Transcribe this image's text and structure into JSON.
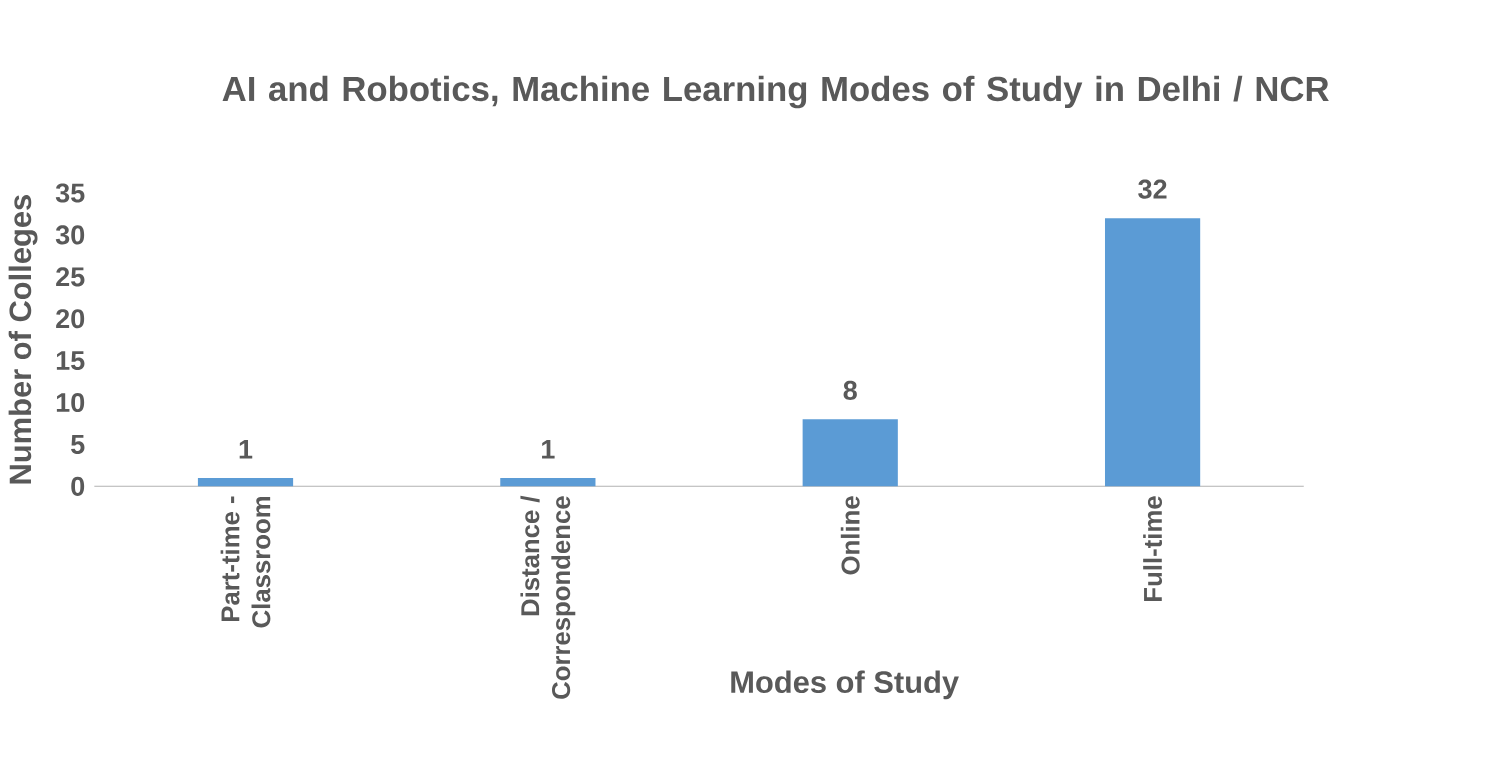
{
  "chart_data": {
    "type": "bar",
    "title": "AI and Robotics, Machine Learning Modes of Study in Delhi / NCR",
    "xlabel": "Modes of Study",
    "ylabel": "Number of Colleges",
    "categories": [
      "Part-time - Classroom",
      "Distance / Correspondence",
      "Online",
      "Full-time"
    ],
    "values": [
      1,
      1,
      8,
      32
    ],
    "color": "#5b9bd5",
    "ylim": [
      0,
      35
    ],
    "yticks": [
      0,
      5,
      10,
      15,
      20,
      25,
      30,
      35
    ],
    "data_labels": true
  }
}
